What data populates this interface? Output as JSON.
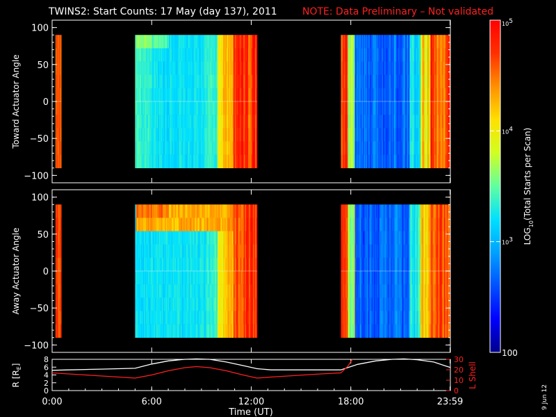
{
  "title": {
    "main": "TWINS2: Start Counts: 17 May (day 137), 2011",
    "note": "NOTE: Data Preliminary – Not validated",
    "note_color": "#ff2020"
  },
  "datestamp": "9 Jun 12",
  "colors": {
    "orbit_R": "#ffffff",
    "orbit_L": "#ff2020",
    "axis": "#ffffff",
    "background": "#000000"
  },
  "chart_data": [
    {
      "type": "heatmap",
      "panel": "top",
      "ylabel": "Toward Actuator Angle",
      "ylim": [
        -110,
        110
      ],
      "yticks": [
        -100,
        -50,
        0,
        50,
        100
      ],
      "ytick_labels": [
        "−100",
        "−50",
        "0",
        "50",
        "100"
      ],
      "xlim_hours": [
        0,
        24
      ],
      "angle_range": [
        -90,
        90
      ],
      "data_intervals_hours": [
        [
          0.2,
          0.55
        ],
        [
          5.0,
          12.35
        ],
        [
          17.4,
          24.0
        ]
      ],
      "scale": "log",
      "zlim": [
        100,
        100000
      ]
    },
    {
      "type": "heatmap",
      "panel": "middle",
      "ylabel": "Away Actuator Angle",
      "ylim": [
        -110,
        110
      ],
      "yticks": [
        -100,
        -50,
        0,
        50,
        100
      ],
      "ytick_labels": [
        "−100",
        "−50",
        "0",
        "50",
        "100"
      ],
      "xlim_hours": [
        0,
        24
      ],
      "angle_range": [
        -90,
        90
      ],
      "data_intervals_hours": [
        [
          0.2,
          0.55
        ],
        [
          5.0,
          12.35
        ],
        [
          17.4,
          24.0
        ]
      ],
      "band_angle": 70,
      "scale": "log",
      "zlim": [
        100,
        100000
      ]
    },
    {
      "type": "line",
      "panel": "orbit",
      "xlabel": "Time (UT)",
      "xlim_hours": [
        0,
        24
      ],
      "xtick_hours": [
        0,
        6,
        12,
        18,
        23.98
      ],
      "xtick_labels": [
        "0:00",
        "6:00",
        "12:00",
        "18:00",
        "23:59"
      ],
      "left_axis": {
        "label": "R [R",
        "label_sub": "E",
        "label_end": "]",
        "ylim": [
          0,
          8
        ],
        "ytick_labels": [
          "0",
          "2",
          "4",
          "6",
          "8"
        ]
      },
      "right_axis": {
        "label": "L Shell",
        "ylim": [
          0,
          30
        ],
        "ytick_labels": [
          "0",
          "10",
          "20",
          "30"
        ]
      },
      "series": [
        {
          "name": "R",
          "axis": "left",
          "x": [
            0,
            1,
            2,
            3,
            4,
            5,
            6,
            7,
            8,
            8.7,
            9.5,
            10.5,
            11.5,
            12.35,
            13.2,
            14.2,
            15.2,
            16.2,
            17.4,
            18.4,
            19.5,
            20.5,
            21.2,
            22,
            23,
            24
          ],
          "y": [
            5.2,
            5.3,
            5.4,
            5.5,
            5.6,
            5.7,
            6.8,
            7.6,
            8.0,
            8.1,
            8.0,
            7.3,
            6.4,
            5.6,
            5.3,
            5.3,
            5.3,
            5.3,
            5.3,
            6.7,
            7.6,
            8.0,
            8.1,
            7.9,
            7.3,
            5.9
          ]
        },
        {
          "name": "L Shell",
          "axis": "right",
          "x": [
            0,
            1,
            2,
            3,
            4,
            5,
            6,
            7,
            8,
            8.7,
            9.5,
            10.5,
            11.5,
            12.35,
            13.2,
            14.2,
            15.2,
            16.2,
            17.4,
            17.8,
            18.1
          ],
          "y": [
            17,
            16,
            15,
            14,
            13,
            12,
            15,
            19,
            22,
            23,
            22,
            19,
            15,
            12,
            13,
            14,
            15,
            16,
            17,
            23,
            30
          ]
        }
      ]
    }
  ],
  "colorbar": {
    "label_prefix": "LOG",
    "label_sub": "10",
    "label_suffix": "(Total Starts per Scan)",
    "scale": "log",
    "range": [
      100,
      100000
    ],
    "ticks": [
      {
        "value": 100000,
        "base": "10",
        "exp": "5",
        "plain": ""
      },
      {
        "value": 10000,
        "base": "10",
        "exp": "4",
        "plain": ""
      },
      {
        "value": 1000,
        "base": "10",
        "exp": "3",
        "plain": ""
      },
      {
        "value": 100,
        "base": "",
        "exp": "",
        "plain": "100"
      }
    ],
    "colormap": [
      "#00008a",
      "#0000ff",
      "#0050ff",
      "#00a0ff",
      "#00e0ff",
      "#60ffa0",
      "#d0ff20",
      "#ffe000",
      "#ff9000",
      "#ff3000",
      "#ff0000"
    ]
  }
}
